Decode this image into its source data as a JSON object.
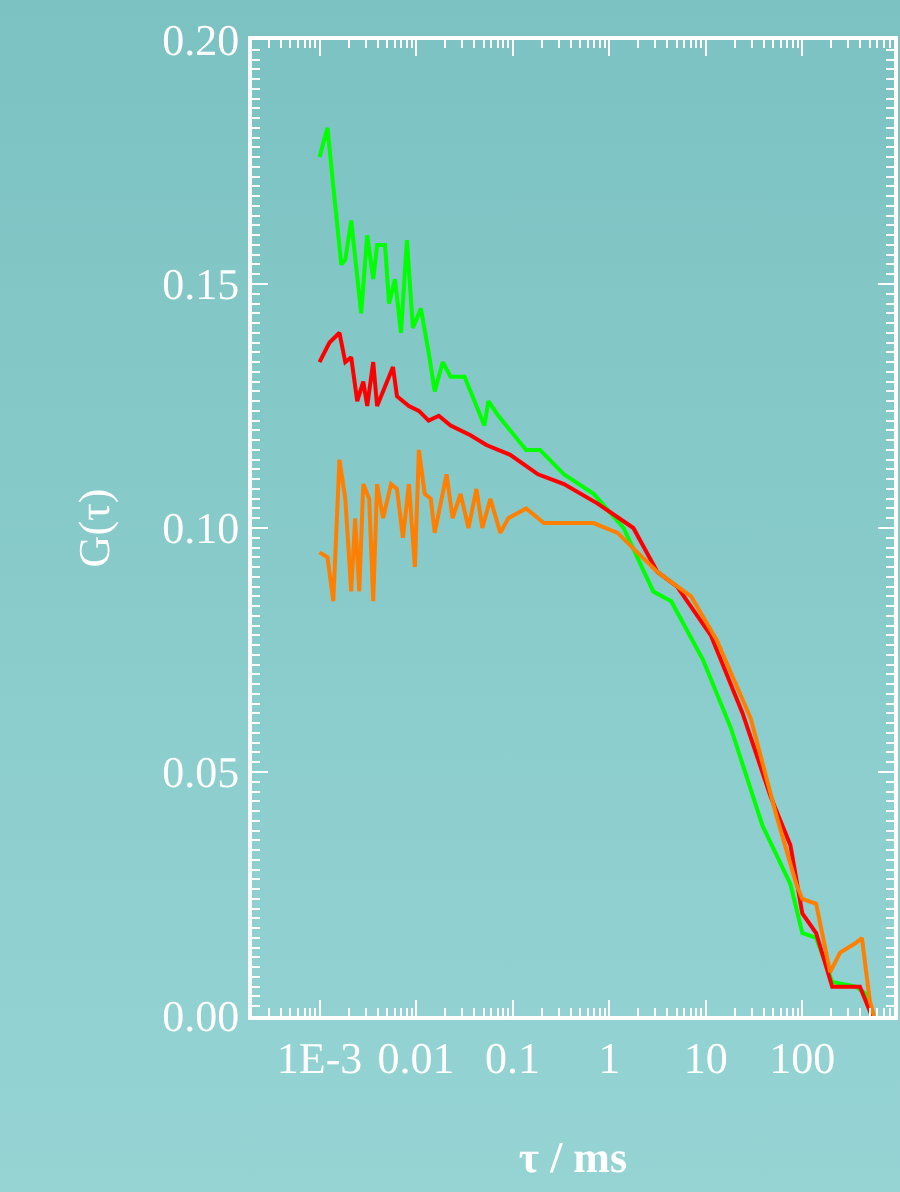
{
  "chart_data": {
    "type": "line",
    "xlabel": "τ / ms",
    "ylabel": "G(τ)",
    "log": "x",
    "grid": false,
    "marker": "none",
    "line_style": "solid",
    "xlim": [
      0.0002,
      890
    ],
    "ylim": [
      0,
      0.2
    ],
    "xticks": [
      {
        "value": 0.001,
        "label": "1E-3"
      },
      0.01,
      0.1,
      1,
      10,
      100
    ],
    "yticks": [
      {
        "value": 0,
        "label": "0.00"
      },
      0.05,
      {
        "value": 0.1,
        "label": "0.10"
      },
      0.15,
      {
        "value": 0.2,
        "label": "0.20"
      }
    ],
    "series": [
      {
        "color": "#00ff00",
        "x": [
          0.001,
          0.00121,
          0.00139,
          0.00168,
          0.00185,
          0.00213,
          0.0027,
          0.00312,
          0.0036,
          0.00395,
          0.00477,
          0.00525,
          0.00605,
          0.00698,
          0.00804,
          0.00927,
          0.0112,
          0.0135,
          0.0156,
          0.0189,
          0.0228,
          0.0318,
          0.0422,
          0.051,
          0.0561,
          0.0711,
          0.138,
          0.192,
          0.34,
          0.691,
          1.41,
          2.86,
          4.39,
          9.36,
          18.2,
          38.7,
          75.3,
          100,
          139,
          204,
          360,
          455,
          525
        ],
        "values": [
          0.176,
          0.182,
          0.17,
          0.154,
          0.155,
          0.163,
          0.144,
          0.16,
          0.151,
          0.158,
          0.158,
          0.146,
          0.151,
          0.14,
          0.159,
          0.141,
          0.145,
          0.136,
          0.128,
          0.134,
          0.131,
          0.131,
          0.125,
          0.121,
          0.126,
          0.123,
          0.116,
          0.116,
          0.111,
          0.107,
          0.1,
          0.087,
          0.085,
          0.073,
          0.059,
          0.039,
          0.027,
          0.017,
          0.016,
          0.007,
          0.006,
          0.0045,
          0
        ]
      },
      {
        "color": "#ff0000",
        "x": [
          0.001,
          0.00127,
          0.00161,
          0.00185,
          0.00213,
          0.00246,
          0.00284,
          0.00312,
          0.0036,
          0.00395,
          0.00501,
          0.00577,
          0.00634,
          0.00843,
          0.0107,
          0.0135,
          0.0172,
          0.0228,
          0.0366,
          0.0535,
          0.0944,
          0.183,
          0.34,
          0.76,
          1.78,
          3.15,
          5.06,
          11.3,
          24.1,
          46.9,
          75.3,
          100,
          139,
          204,
          395,
          525
        ],
        "values": [
          0.134,
          0.138,
          0.14,
          0.134,
          0.135,
          0.126,
          0.13,
          0.125,
          0.134,
          0.125,
          0.13,
          0.133,
          0.127,
          0.125,
          0.124,
          0.122,
          0.123,
          0.121,
          0.119,
          0.117,
          0.115,
          0.111,
          0.109,
          0.105,
          0.1,
          0.091,
          0.088,
          0.078,
          0.062,
          0.045,
          0.035,
          0.021,
          0.017,
          0.006,
          0.006,
          0
        ]
      },
      {
        "color": "#ff8000",
        "x": [
          0.001,
          0.00121,
          0.00139,
          0.00161,
          0.00185,
          0.00213,
          0.00234,
          0.00258,
          0.00284,
          0.00327,
          0.0036,
          0.00395,
          0.00455,
          0.00551,
          0.00634,
          0.00731,
          0.00843,
          0.00972,
          0.0107,
          0.0123,
          0.0142,
          0.0156,
          0.0207,
          0.0239,
          0.0289,
          0.0349,
          0.0422,
          0.0486,
          0.0588,
          0.0745,
          0.0901,
          0.138,
          0.211,
          0.34,
          0.691,
          1.22,
          1.96,
          3.15,
          7.05,
          13,
          29.2,
          54,
          86.8,
          100,
          139,
          194,
          246,
          360,
          414,
          501,
          551
        ],
        "values": [
          0.095,
          0.094,
          0.085,
          0.114,
          0.106,
          0.087,
          0.102,
          0.087,
          0.109,
          0.106,
          0.085,
          0.109,
          0.102,
          0.109,
          0.108,
          0.098,
          0.109,
          0.092,
          0.116,
          0.107,
          0.106,
          0.099,
          0.111,
          0.102,
          0.107,
          0.1,
          0.108,
          0.1,
          0.106,
          0.099,
          0.102,
          0.104,
          0.101,
          0.101,
          0.101,
          0.099,
          0.095,
          0.091,
          0.086,
          0.077,
          0.061,
          0.041,
          0.027,
          0.024,
          0.023,
          0.009,
          0.013,
          0.015,
          0.016,
          0.003,
          0
        ]
      }
    ]
  }
}
